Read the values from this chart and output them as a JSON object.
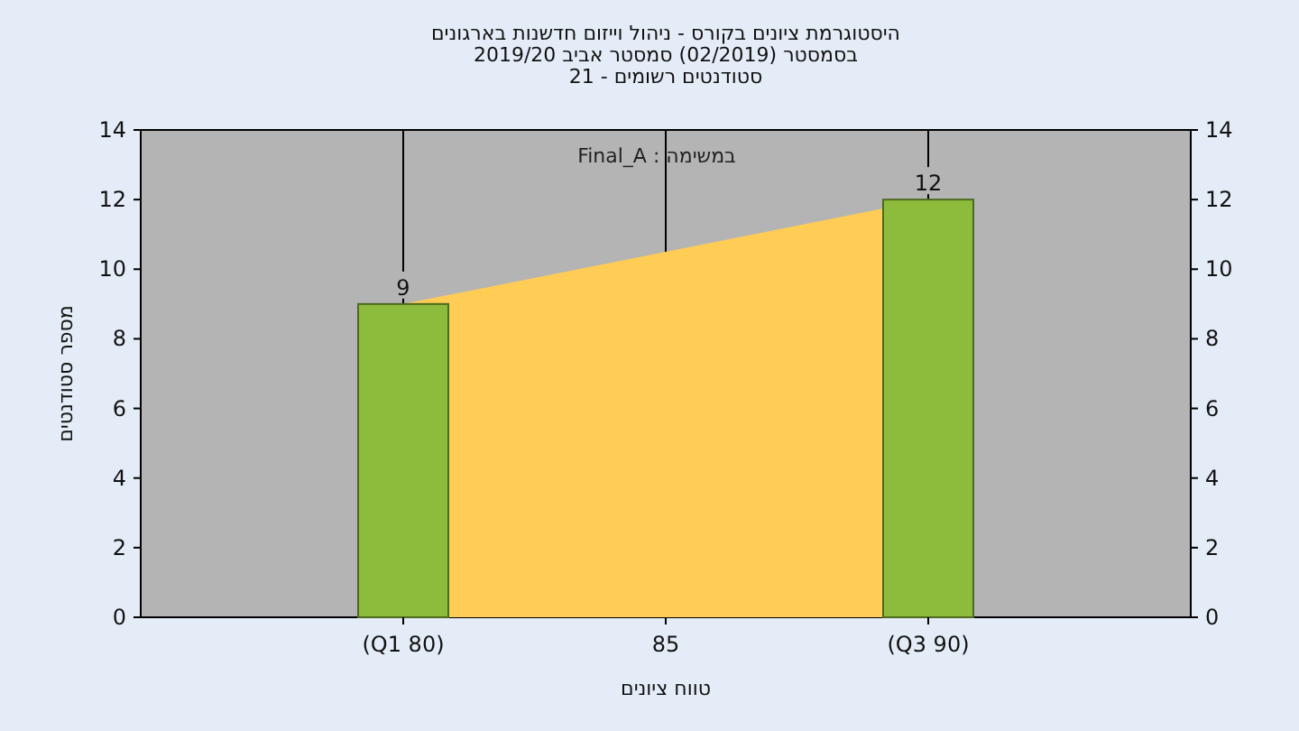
{
  "chart_data": {
    "type": "bar",
    "title": "היסטוגרמת ציונים בקורס - ניהול וייזום חדשנות בארגונים",
    "subtitle": "בסמסטר  (02/2019)  סמסטר אביב 2019/20\nסטודנטים רשומים - 21",
    "xlabel": "טווח ציונים",
    "ylabel": "מספר סטודנטים",
    "annotations": [
      "Final_A : במשימה"
    ],
    "categories": [
      "(Q1 80)",
      "85",
      "(Q3 90)"
    ],
    "ylim": [
      0,
      14
    ],
    "yticks": [
      0,
      2,
      4,
      6,
      8,
      10,
      12,
      14
    ],
    "y2lim": [
      0,
      14
    ],
    "y2ticks": [
      0,
      2,
      4,
      6,
      8,
      10,
      12,
      14
    ],
    "grid": "x",
    "series": [
      {
        "type": "area",
        "color": "#ffcc55",
        "values": [
          9,
          10.5,
          12
        ]
      },
      {
        "color": "#8dbb3c",
        "values": [
          9,
          null,
          12
        ],
        "data_labels": true
      }
    ]
  }
}
